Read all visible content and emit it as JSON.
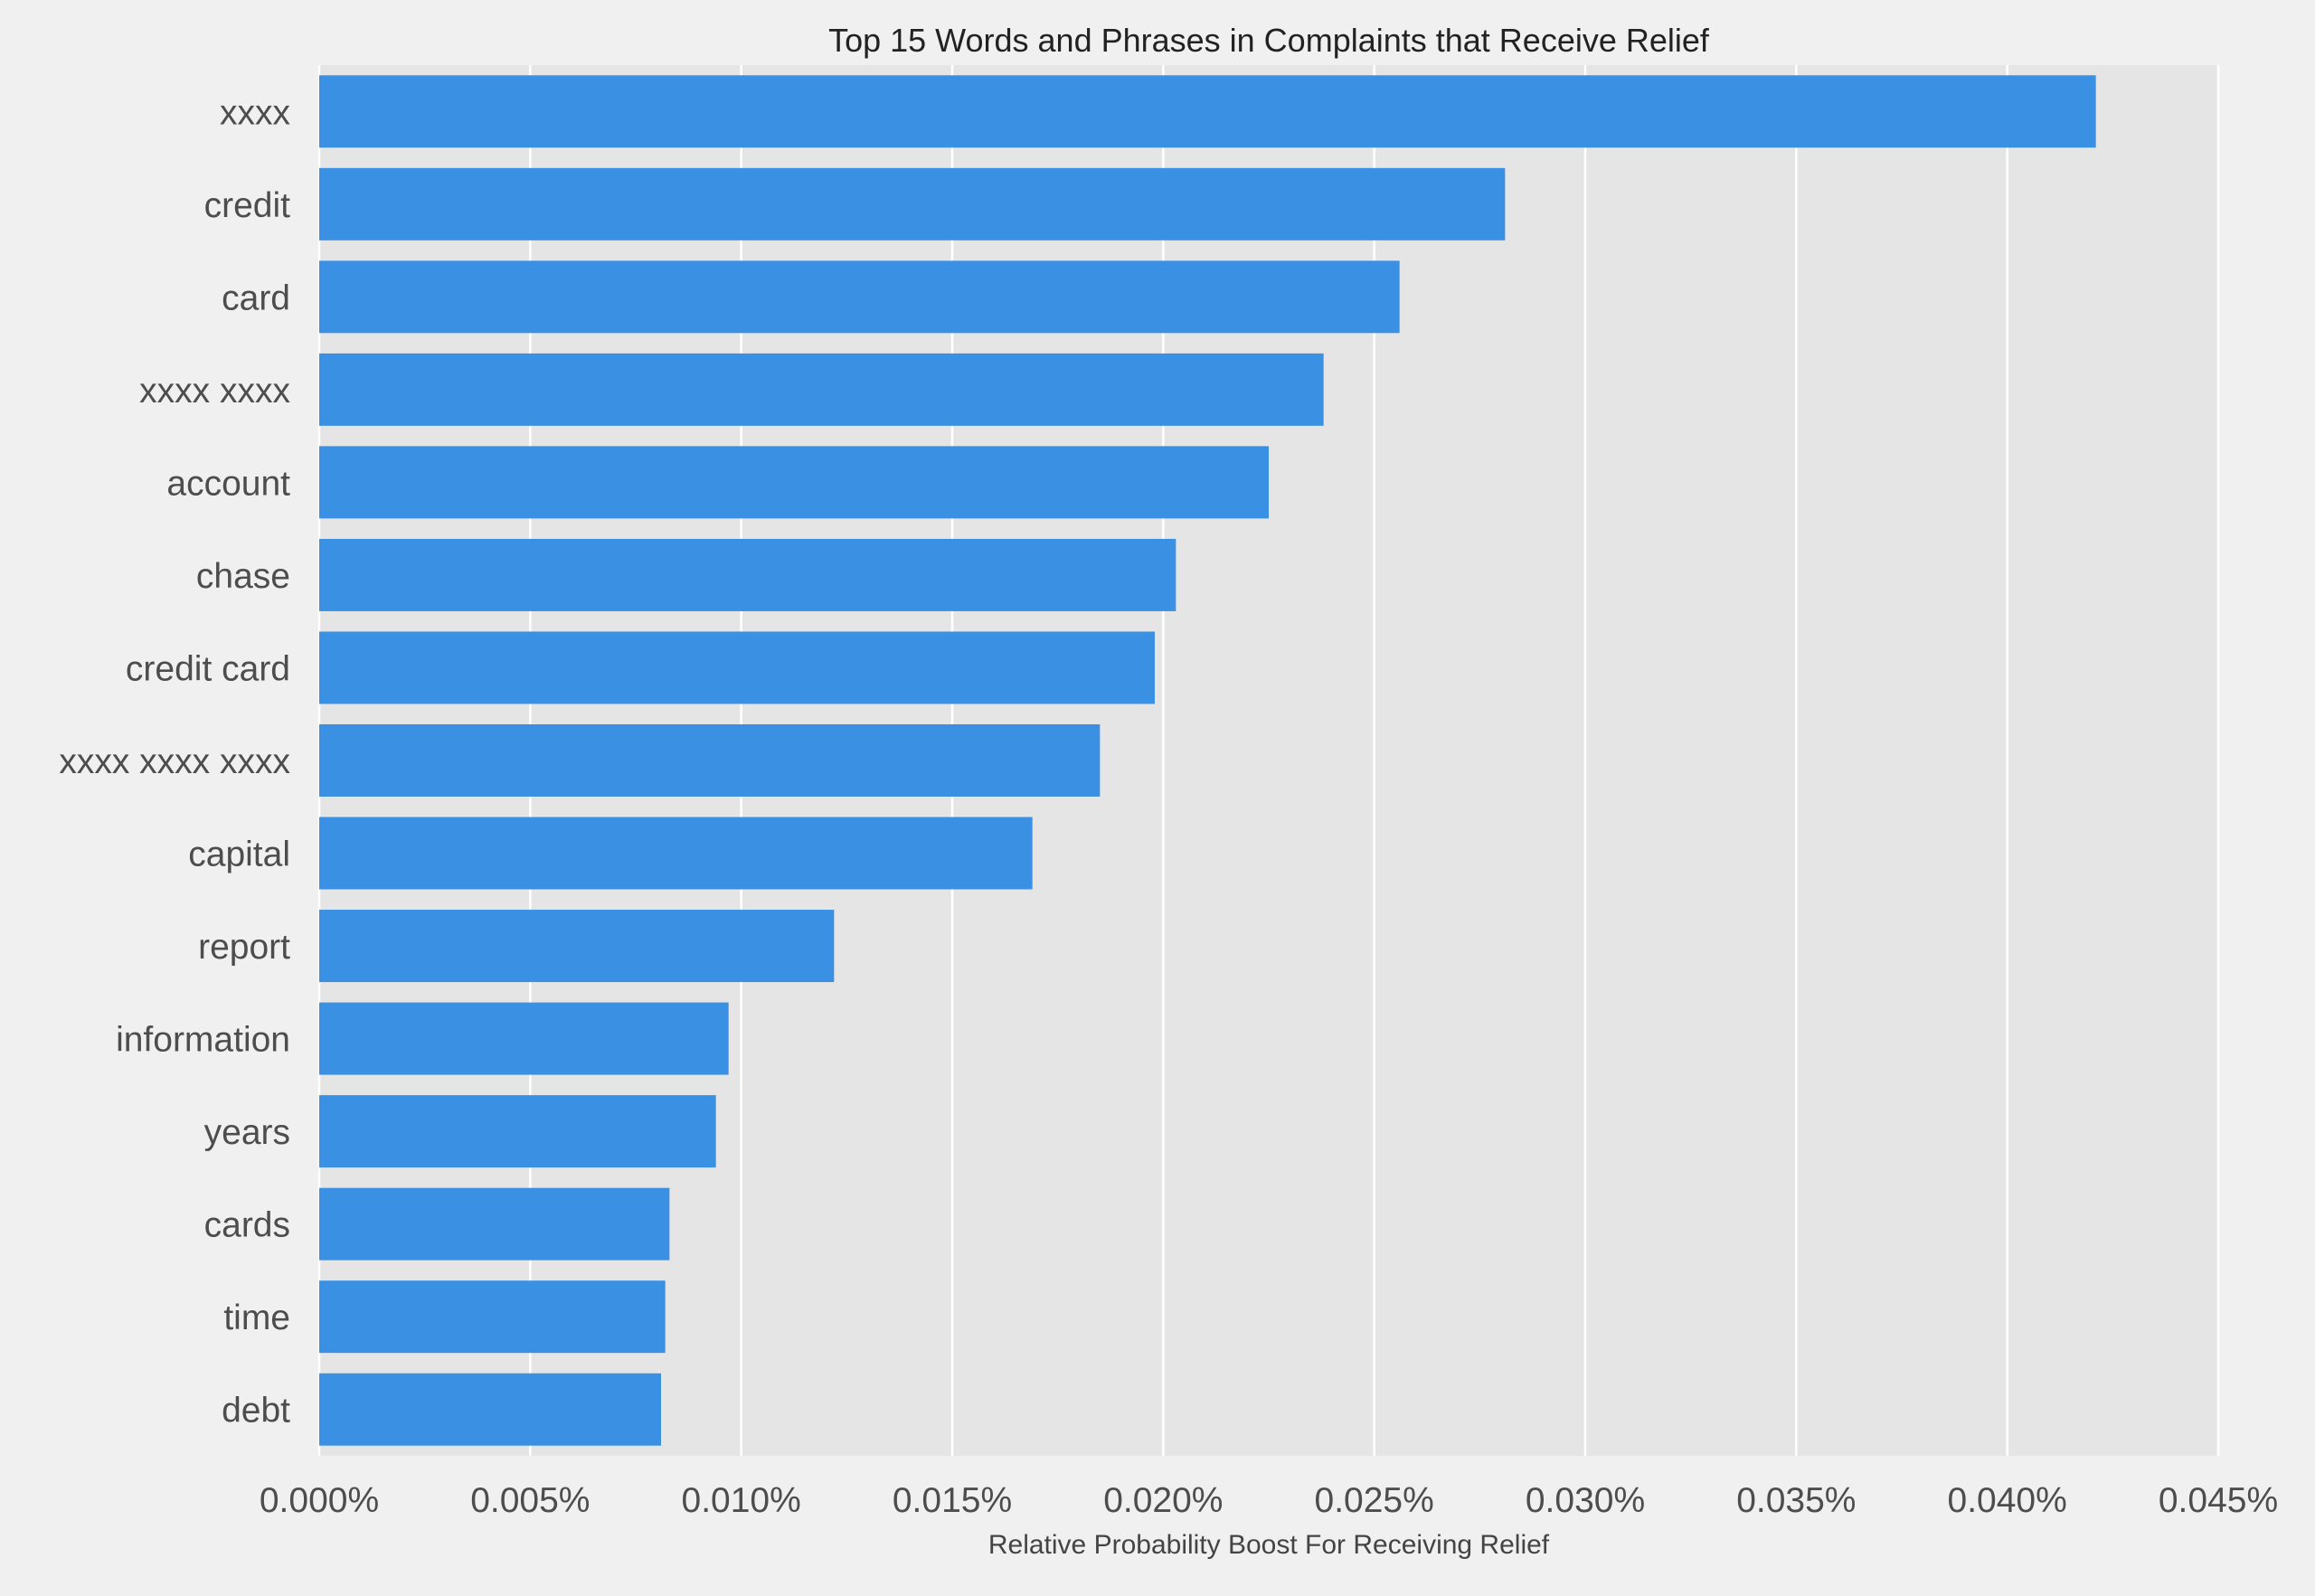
{
  "chart_data": {
    "type": "bar",
    "orientation": "horizontal",
    "title": "Top 15 Words and Phrases in Complaints that Receive Relief",
    "xlabel": "Relative Probability Boost For Receiving Relief",
    "ylabel": "",
    "categories": [
      "xxxx",
      "credit",
      "card",
      "xxxx xxxx",
      "account",
      "chase",
      "credit card",
      "xxxx xxxx xxxx",
      "capital",
      "report",
      "information",
      "years",
      "cards",
      "time",
      "debt"
    ],
    "values": [
      0.0421,
      0.0281,
      0.0256,
      0.0238,
      0.0225,
      0.0203,
      0.0198,
      0.0185,
      0.0169,
      0.0122,
      0.0097,
      0.0094,
      0.0083,
      0.0082,
      0.0081
    ],
    "xlim": [
      0,
      0.045
    ],
    "x_ticks": [
      "0.000%",
      "0.005%",
      "0.010%",
      "0.015%",
      "0.020%",
      "0.025%",
      "0.030%",
      "0.035%",
      "0.040%",
      "0.045%"
    ],
    "x_tick_values": [
      0,
      0.005,
      0.01,
      0.015,
      0.02,
      0.025,
      0.03,
      0.035,
      0.04,
      0.045
    ],
    "grid": true,
    "colors": {
      "bar": "#3a90e3",
      "plot_background": "#e5e5e5",
      "figure_background": "#f0f0f0",
      "grid": "#ffffff"
    }
  }
}
